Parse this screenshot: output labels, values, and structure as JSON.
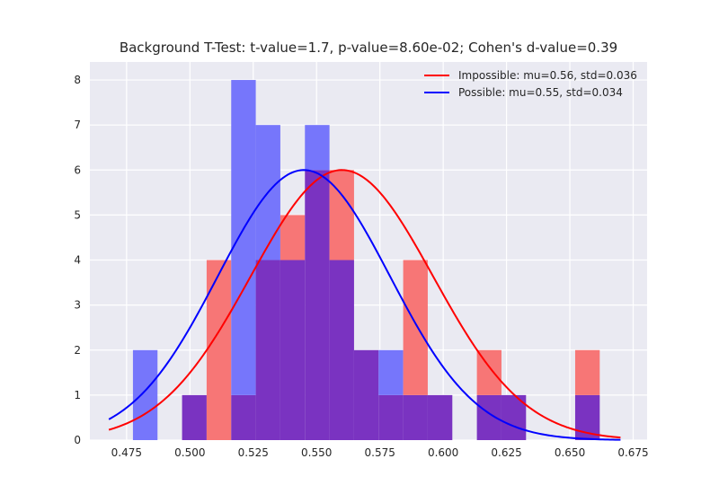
{
  "chart_data": {
    "type": "histogram",
    "title": "Background T-Test: t-value=1.7, p-value=8.60e-02; Cohen's d-value=0.39",
    "xlabel": "",
    "ylabel": "",
    "xlim": [
      0.4605,
      0.6805
    ],
    "ylim": [
      0,
      8.4
    ],
    "x_ticks": [
      "0.475",
      "0.500",
      "0.525",
      "0.550",
      "0.575",
      "0.600",
      "0.625",
      "0.650",
      "0.675"
    ],
    "y_ticks": [
      "0",
      "1",
      "2",
      "3",
      "4",
      "5",
      "6",
      "7",
      "8"
    ],
    "grid": true,
    "legend_position": "top-right",
    "colors": {
      "impossible": "#ff0000",
      "possible": "#0000ff",
      "overlap": "#7a33c1",
      "background": "#eaeaf2"
    },
    "bins": [
      {
        "x0": 0.4775,
        "x1": 0.4872,
        "impossible": 0,
        "possible": 2
      },
      {
        "x0": 0.4969,
        "x1": 0.5066,
        "impossible": 1,
        "possible": 1
      },
      {
        "x0": 0.5066,
        "x1": 0.5163,
        "impossible": 4,
        "possible": 0
      },
      {
        "x0": 0.5163,
        "x1": 0.526,
        "impossible": 1,
        "possible": 8
      },
      {
        "x0": 0.526,
        "x1": 0.5357,
        "impossible": 4,
        "possible": 7
      },
      {
        "x0": 0.5357,
        "x1": 0.5454,
        "impossible": 5,
        "possible": 4
      },
      {
        "x0": 0.5454,
        "x1": 0.5551,
        "impossible": 6,
        "possible": 7
      },
      {
        "x0": 0.5551,
        "x1": 0.5648,
        "impossible": 6,
        "possible": 4
      },
      {
        "x0": 0.5648,
        "x1": 0.5745,
        "impossible": 2,
        "possible": 2
      },
      {
        "x0": 0.5745,
        "x1": 0.5842,
        "impossible": 1,
        "possible": 2
      },
      {
        "x0": 0.5842,
        "x1": 0.5939,
        "impossible": 4,
        "possible": 1
      },
      {
        "x0": 0.5939,
        "x1": 0.6036,
        "impossible": 1,
        "possible": 1
      },
      {
        "x0": 0.6133,
        "x1": 0.623,
        "impossible": 2,
        "possible": 1
      },
      {
        "x0": 0.623,
        "x1": 0.6327,
        "impossible": 1,
        "possible": 1
      },
      {
        "x0": 0.6521,
        "x1": 0.6618,
        "impossible": 2,
        "possible": 1
      }
    ],
    "series": [
      {
        "name": "Impossible: mu=0.56, std=0.036",
        "key": "impossible",
        "mu": 0.56,
        "std": 0.036,
        "peak": 6.0,
        "x_range": [
          0.468,
          0.67
        ]
      },
      {
        "name": "Possible: mu=0.55, std=0.034",
        "key": "possible",
        "mu": 0.545,
        "std": 0.034,
        "peak": 6.0,
        "x_range": [
          0.468,
          0.67
        ]
      }
    ]
  }
}
